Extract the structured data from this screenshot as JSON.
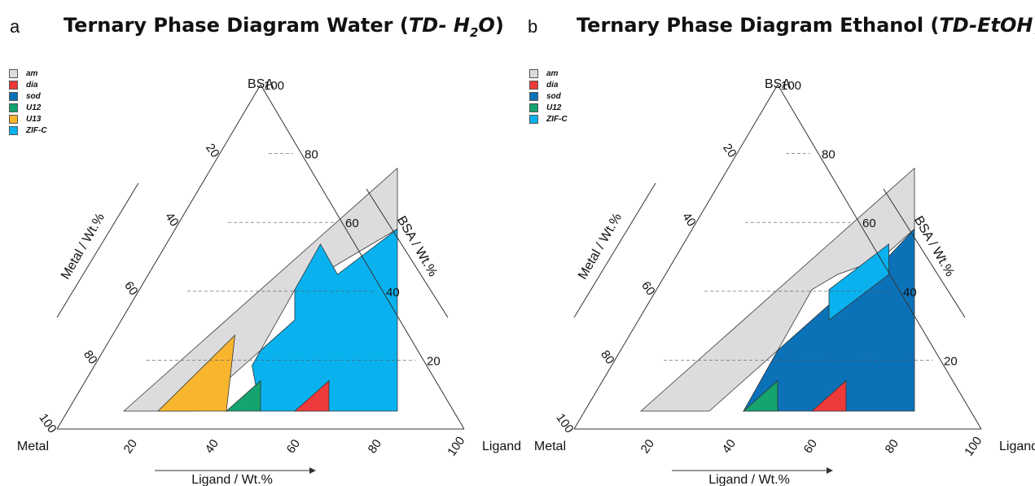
{
  "panels": [
    {
      "letter": "a",
      "title_prefix": "Ternary Phase Diagram Water (",
      "title_em": "TD- H",
      "title_sub": "2",
      "title_em2": "O",
      "title_suffix": ")",
      "legend": [
        {
          "label": "am",
          "color": "#dcdcdf"
        },
        {
          "label": "dia",
          "color": "#ee3a3a"
        },
        {
          "label": "sod",
          "color": "#0c72b8"
        },
        {
          "label": "U12",
          "color": "#15a36e"
        },
        {
          "label": "U13",
          "color": "#f8b52e"
        },
        {
          "label": "ZIF-C",
          "color": "#09b2ee"
        }
      ]
    },
    {
      "letter": "b",
      "title_prefix": "Ternary Phase Diagram Ethanol (",
      "title_em": "TD-EtOH",
      "title_sub": "",
      "title_em2": "",
      "title_suffix": ")",
      "legend": [
        {
          "label": "am",
          "color": "#dcdcdf"
        },
        {
          "label": "dia",
          "color": "#ee3a3a"
        },
        {
          "label": "sod",
          "color": "#0c72b8"
        },
        {
          "label": "U12",
          "color": "#15a36e"
        },
        {
          "label": "ZIF-C",
          "color": "#09b2ee"
        }
      ]
    }
  ],
  "axes": {
    "top_vertex": "BSA",
    "left_vertex": "Metal",
    "right_vertex": "Ligand",
    "left_axis_title": "Metal / Wt.%",
    "right_axis_title": "BSA / Wt.%",
    "bottom_axis_title": "Ligand / Wt.%",
    "bottom_ticks": [
      "20",
      "40",
      "60",
      "80",
      "100"
    ],
    "right_ticks": [
      "20",
      "40",
      "60",
      "80",
      "100"
    ],
    "left_ticks": [
      "20",
      "40",
      "60",
      "80",
      "100"
    ]
  },
  "regions": {
    "water": [
      {
        "phase": "am",
        "color": "#dcdcdf",
        "points": [
          [
            10,
            0
          ],
          [
            50,
            80
          ],
          [
            60,
            60
          ],
          [
            55,
            55
          ],
          [
            45,
            45
          ],
          [
            40,
            40
          ],
          [
            40,
            20
          ],
          [
            30,
            0
          ]
        ]
      },
      {
        "phase": "ZIF-C",
        "color": "#09b2ee",
        "points": [
          [
            50,
            0
          ],
          [
            90,
            0
          ],
          [
            60,
            60
          ],
          [
            50,
            45
          ],
          [
            40,
            55
          ],
          [
            40,
            40
          ],
          [
            45,
            30
          ],
          [
            40,
            20
          ],
          [
            40,
            15
          ],
          [
            50,
            0
          ]
        ]
      },
      {
        "phase": "U13",
        "color": "#f8b52e",
        "points": [
          [
            20,
            0
          ],
          [
            40,
            0
          ],
          [
            30,
            25
          ]
        ]
      },
      {
        "phase": "U12",
        "color": "#15a36e",
        "points": [
          [
            40,
            0
          ],
          [
            50,
            0
          ],
          [
            45,
            10
          ]
        ]
      },
      {
        "phase": "dia",
        "color": "#ee3a3a",
        "points": [
          [
            60,
            0
          ],
          [
            70,
            0
          ],
          [
            65,
            10
          ]
        ]
      }
    ],
    "ethanol": [
      {
        "phase": "am",
        "color": "#dcdcdf",
        "points": [
          [
            10,
            0
          ],
          [
            50,
            80
          ],
          [
            60,
            60
          ],
          [
            55,
            50
          ],
          [
            45,
            45
          ],
          [
            40,
            40
          ],
          [
            40,
            20
          ],
          [
            30,
            0
          ]
        ]
      },
      {
        "phase": "sod",
        "color": "#0c72b8",
        "points": [
          [
            40,
            0
          ],
          [
            90,
            0
          ],
          [
            60,
            60
          ],
          [
            55,
            45
          ],
          [
            50,
            40
          ],
          [
            40,
            20
          ],
          [
            40,
            15
          ]
        ]
      },
      {
        "phase": "ZIF-C",
        "color": "#09b2ee",
        "points": [
          [
            55,
            55
          ],
          [
            60,
            45
          ],
          [
            50,
            30
          ],
          [
            45,
            40
          ]
        ]
      },
      {
        "phase": "U12",
        "color": "#15a36e",
        "points": [
          [
            40,
            0
          ],
          [
            50,
            0
          ],
          [
            45,
            10
          ]
        ]
      },
      {
        "phase": "dia",
        "color": "#ee3a3a",
        "points": [
          [
            60,
            0
          ],
          [
            70,
            0
          ],
          [
            65,
            10
          ]
        ]
      }
    ]
  }
}
